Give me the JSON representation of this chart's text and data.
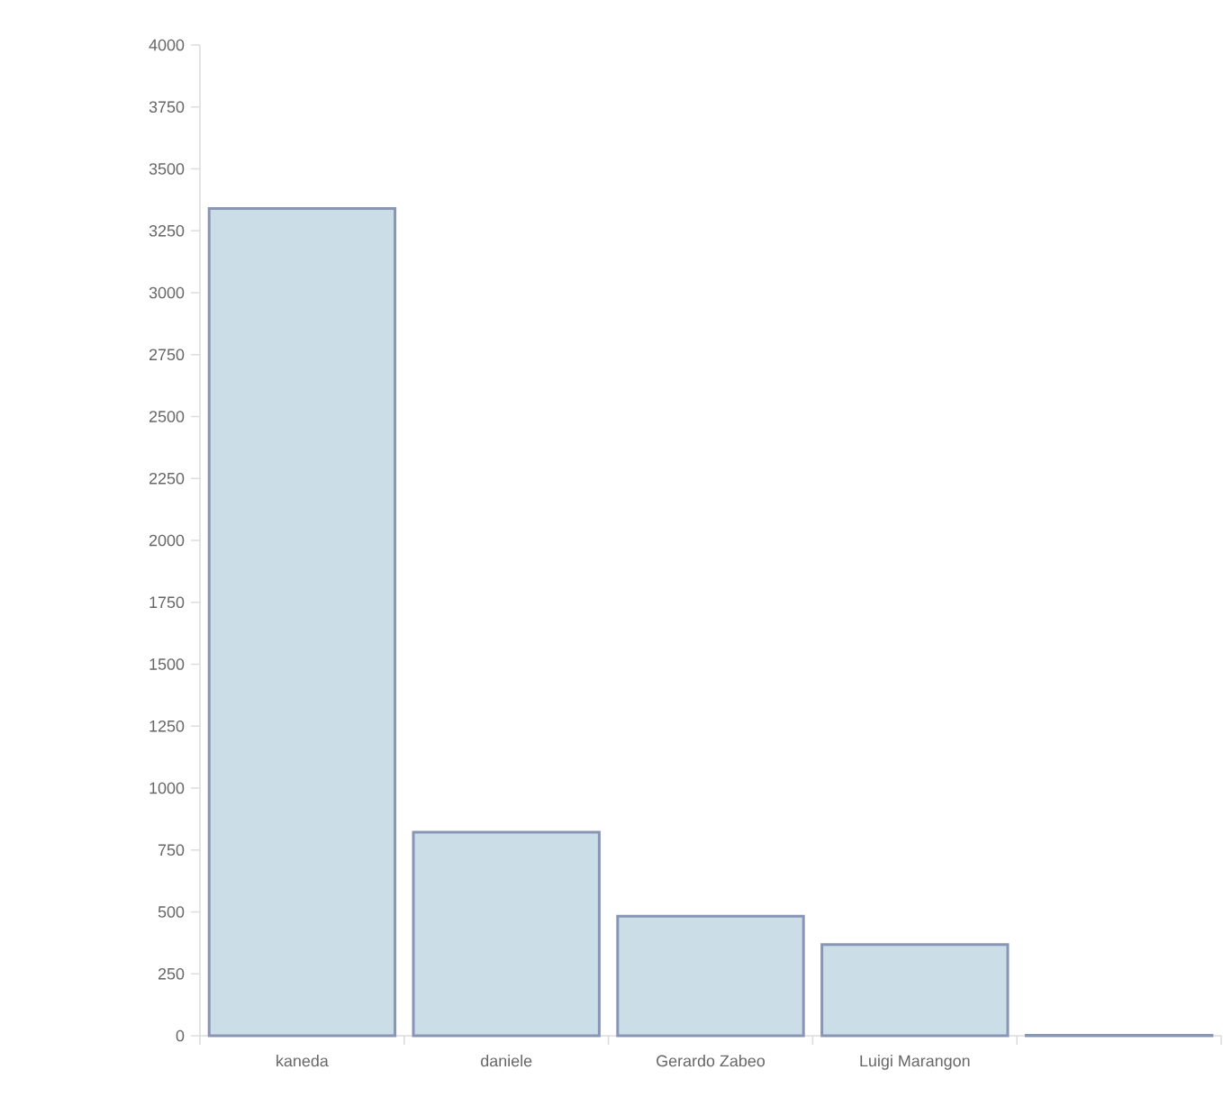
{
  "chart_data": {
    "type": "bar",
    "categories": [
      "kaneda",
      "daniele",
      "Gerardo Zabeo",
      "Luigi Marangon",
      null
    ],
    "values": [
      3340,
      822,
      483,
      368,
      2
    ],
    "color": "#cbdde6",
    "ylim": [
      0,
      4000
    ],
    "yticks": [
      0,
      250,
      500,
      750,
      1000,
      1250,
      1500,
      1750,
      2000,
      2250,
      2500,
      2750,
      3000,
      3250,
      3500,
      3750,
      4000
    ]
  }
}
